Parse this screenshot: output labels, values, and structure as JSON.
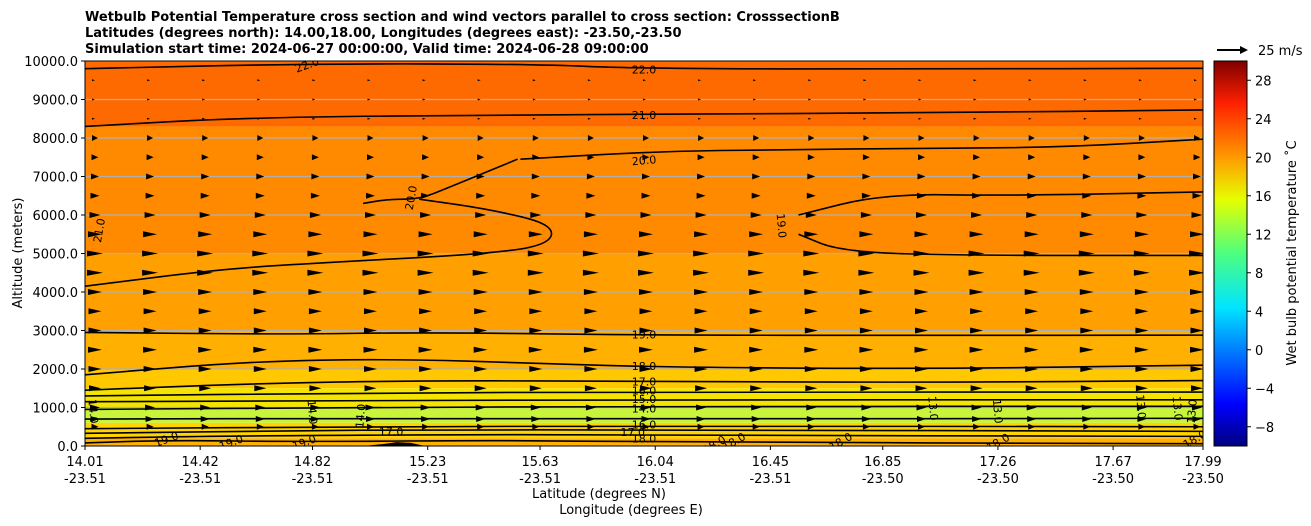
{
  "chart_data": {
    "type": "contour",
    "title_lines": [
      "Wetbulb Potential Temperature cross section and wind vectors parallel to cross section: CrosssectionB",
      "Latitudes (degrees north): 14.00,18.00, Longitudes (degrees east): -23.50,-23.50",
      "Simulation start time: 2024-06-27 00:00:00, Valid time: 2024-06-28 09:00:00"
    ],
    "ylabel": "Altitude (meters)",
    "xlabel_lines": [
      "Latitude (degrees N)",
      "Longitude (degrees E)"
    ],
    "ylim": [
      0,
      10000
    ],
    "yticks": [
      0,
      1000,
      2000,
      3000,
      4000,
      5000,
      6000,
      7000,
      8000,
      9000,
      10000
    ],
    "ytick_labels": [
      "0.0",
      "1000.0",
      "2000.0",
      "3000.0",
      "4000.0",
      "5000.0",
      "6000.0",
      "7000.0",
      "8000.0",
      "9000.0",
      "10000.0"
    ],
    "grid": "horizontal",
    "xticks": [
      {
        "lat": "14.01",
        "lon": "-23.51"
      },
      {
        "lat": "14.42",
        "lon": "-23.51"
      },
      {
        "lat": "14.82",
        "lon": "-23.51"
      },
      {
        "lat": "15.23",
        "lon": "-23.51"
      },
      {
        "lat": "15.63",
        "lon": "-23.51"
      },
      {
        "lat": "16.04",
        "lon": "-23.51"
      },
      {
        "lat": "16.45",
        "lon": "-23.51"
      },
      {
        "lat": "16.85",
        "lon": "-23.50"
      },
      {
        "lat": "17.26",
        "lon": "-23.50"
      },
      {
        "lat": "17.67",
        "lon": "-23.50"
      },
      {
        "lat": "17.99",
        "lon": "-23.50"
      }
    ],
    "colorbar": {
      "label": "Wet bulb potential temperature ˚C",
      "range": [
        -10,
        30
      ],
      "ticks": [
        -8,
        -4,
        0,
        4,
        8,
        12,
        16,
        20,
        24,
        28
      ],
      "tick_labels": [
        "−8",
        "−4",
        "0",
        "4",
        "8",
        "12",
        "16",
        "20",
        "24",
        "28"
      ],
      "colormap": "jet"
    },
    "quiver_key": "25 m/s",
    "contour_levels_labeled": [
      13.0,
      14.0,
      15.0,
      16.0,
      17.0,
      18.0,
      19.0,
      20.0,
      21.0,
      22.0
    ],
    "contours": [
      {
        "level": 22.0,
        "label": "22.0",
        "points": [
          [
            14.01,
            9800
          ],
          [
            14.8,
            9930
          ],
          [
            15.6,
            9920
          ],
          [
            16.0,
            9800
          ],
          [
            17.0,
            9790
          ],
          [
            17.99,
            9810
          ]
        ]
      },
      {
        "level": 21.0,
        "label": "21.0",
        "points": [
          [
            14.01,
            8300
          ],
          [
            14.6,
            8540
          ],
          [
            15.6,
            8600
          ],
          [
            16.04,
            8620
          ],
          [
            17.0,
            8650
          ],
          [
            17.99,
            8730
          ]
        ]
      },
      {
        "level": 20.0,
        "label": "20.0",
        "points": [
          [
            15.56,
            7450
          ],
          [
            16.04,
            7650
          ],
          [
            16.5,
            7700
          ],
          [
            17.0,
            7730
          ],
          [
            17.5,
            7760
          ],
          [
            17.99,
            7970
          ]
        ]
      },
      {
        "level": 20.0,
        "label": "20.0",
        "points": [
          [
            15.0,
            6300
          ],
          [
            15.09,
            6410
          ],
          [
            15.2,
            6410
          ],
          [
            15.3,
            6700
          ],
          [
            15.55,
            7450
          ]
        ]
      },
      {
        "level": 20.0,
        "label": "",
        "points": [
          [
            15.2,
            6410
          ],
          [
            15.45,
            6150
          ],
          [
            15.68,
            5750
          ],
          [
            15.66,
            5200
          ],
          [
            15.4,
            4970
          ],
          [
            14.9,
            4780
          ],
          [
            14.5,
            4600
          ],
          [
            14.01,
            4150
          ]
        ]
      },
      {
        "level": 19.0,
        "label": "19.0",
        "points": [
          [
            16.55,
            6000
          ],
          [
            16.85,
            6550
          ],
          [
            17.3,
            6500
          ],
          [
            17.99,
            6600
          ]
        ]
      },
      {
        "level": 19.0,
        "label": "",
        "points": [
          [
            16.55,
            5500
          ],
          [
            16.7,
            5050
          ],
          [
            17.1,
            4950
          ],
          [
            17.99,
            4950
          ]
        ]
      },
      {
        "level": 19.0,
        "label": "19.0",
        "points": [
          [
            14.01,
            2950
          ],
          [
            14.7,
            2900
          ],
          [
            15.23,
            2950
          ],
          [
            16.04,
            2880
          ],
          [
            17.0,
            2870
          ],
          [
            17.99,
            2880
          ]
        ]
      },
      {
        "level": 18.0,
        "label": "18.0",
        "points": [
          [
            14.01,
            1850
          ],
          [
            14.6,
            2200
          ],
          [
            15.1,
            2260
          ],
          [
            15.63,
            2150
          ],
          [
            16.04,
            2050
          ],
          [
            17.0,
            2000
          ],
          [
            17.99,
            2100
          ]
        ]
      },
      {
        "level": 17.0,
        "label": "17.0",
        "points": [
          [
            14.01,
            1450
          ],
          [
            14.6,
            1620
          ],
          [
            15.2,
            1700
          ],
          [
            16.04,
            1680
          ],
          [
            17.0,
            1650
          ],
          [
            17.99,
            1700
          ]
        ]
      },
      {
        "level": 16.0,
        "label": "16.0",
        "points": [
          [
            14.01,
            1300
          ],
          [
            15.0,
            1380
          ],
          [
            16.04,
            1400
          ],
          [
            17.99,
            1400
          ]
        ]
      },
      {
        "level": 15.0,
        "label": "15.0",
        "points": [
          [
            14.01,
            1150
          ],
          [
            15.0,
            1180
          ],
          [
            16.04,
            1200
          ],
          [
            17.99,
            1200
          ]
        ]
      },
      {
        "level": 14.0,
        "label": "14.0",
        "points": [
          [
            14.01,
            950
          ],
          [
            15.0,
            1000
          ],
          [
            16.04,
            1030
          ],
          [
            17.99,
            1030
          ]
        ]
      },
      {
        "level": 13.0,
        "label": "13.0",
        "points": [
          [
            14.01,
            700
          ],
          [
            15.0,
            720
          ],
          [
            16.04,
            700
          ],
          [
            17.99,
            720
          ]
        ]
      },
      {
        "level": 16.0,
        "label": "16.0",
        "points": [
          [
            14.01,
            450
          ],
          [
            15.0,
            500
          ],
          [
            16.04,
            520
          ],
          [
            17.99,
            500
          ]
        ]
      },
      {
        "level": 17.0,
        "label": "17.0",
        "points": [
          [
            14.01,
            330
          ],
          [
            14.8,
            400
          ],
          [
            15.2,
            420
          ],
          [
            16.04,
            420
          ],
          [
            17.99,
            380
          ]
        ]
      },
      {
        "level": 18.0,
        "label": "18.0",
        "points": [
          [
            14.01,
            200
          ],
          [
            14.5,
            260
          ],
          [
            15.5,
            300
          ],
          [
            16.04,
            280
          ],
          [
            17.99,
            250
          ]
        ]
      },
      {
        "level": 19.0,
        "label": "19.0",
        "points": [
          [
            14.01,
            80
          ],
          [
            14.3,
            150
          ],
          [
            14.8,
            110
          ],
          [
            15.5,
            150
          ],
          [
            16.04,
            100
          ],
          [
            17.99,
            60
          ]
        ]
      }
    ],
    "contour_labels": [
      {
        "text": "22.0",
        "lat": 14.8,
        "alt": 9900,
        "rotate": -20
      },
      {
        "text": "22.0",
        "lat": 16.0,
        "alt": 9780,
        "rotate": 0
      },
      {
        "text": "21.0",
        "lat": 16.0,
        "alt": 8600,
        "rotate": 0
      },
      {
        "text": "21.0",
        "lat": 14.06,
        "alt": 5600,
        "rotate": -80
      },
      {
        "text": "20.0",
        "lat": 16.0,
        "alt": 7420,
        "rotate": -5
      },
      {
        "text": "20.0",
        "lat": 15.17,
        "alt": 6450,
        "rotate": -80
      },
      {
        "text": "19.0",
        "lat": 16.49,
        "alt": 5720,
        "rotate": 85
      },
      {
        "text": "19.0",
        "lat": 16.0,
        "alt": 2900,
        "rotate": 0
      },
      {
        "text": "18.0",
        "lat": 16.0,
        "alt": 2080,
        "rotate": 0
      },
      {
        "text": "17.0",
        "lat": 16.0,
        "alt": 1680,
        "rotate": 0
      },
      {
        "text": "16.0",
        "lat": 16.0,
        "alt": 1440,
        "rotate": 0
      },
      {
        "text": "15.0",
        "lat": 16.0,
        "alt": 1220,
        "rotate": 0
      },
      {
        "text": "14.0",
        "lat": 16.0,
        "alt": 980,
        "rotate": 0
      },
      {
        "text": "14.0",
        "lat": 14.04,
        "alt": 900,
        "rotate": 85
      },
      {
        "text": "14.0",
        "lat": 14.82,
        "alt": 880,
        "rotate": 85
      },
      {
        "text": "14.0",
        "lat": 14.99,
        "alt": 780,
        "rotate": -85
      },
      {
        "text": "13.0",
        "lat": 17.26,
        "alt": 900,
        "rotate": 85
      },
      {
        "text": "13.0",
        "lat": 17.03,
        "alt": 980,
        "rotate": 85
      },
      {
        "text": "13.0",
        "lat": 17.9,
        "alt": 980,
        "rotate": 85
      },
      {
        "text": "13.0",
        "lat": 17.95,
        "alt": 900,
        "rotate": -85
      },
      {
        "text": "13.0",
        "lat": 17.77,
        "alt": 1020,
        "rotate": 85
      },
      {
        "text": "16.0",
        "lat": 16.0,
        "alt": 560,
        "rotate": 0
      },
      {
        "text": "17.0",
        "lat": 15.1,
        "alt": 380,
        "rotate": 0
      },
      {
        "text": "17.0",
        "lat": 15.96,
        "alt": 360,
        "rotate": 0
      },
      {
        "text": "18.0",
        "lat": 16.0,
        "alt": 200,
        "rotate": 0
      },
      {
        "text": "19.0",
        "lat": 14.3,
        "alt": 180,
        "rotate": -20
      },
      {
        "text": "19.0",
        "lat": 14.53,
        "alt": 100,
        "rotate": -20
      },
      {
        "text": "19.0",
        "lat": 14.79,
        "alt": 100,
        "rotate": -20
      },
      {
        "text": "18.0",
        "lat": 16.32,
        "alt": 120,
        "rotate": -30
      },
      {
        "text": "18.0",
        "lat": 16.7,
        "alt": 120,
        "rotate": -30
      },
      {
        "text": "18.0",
        "lat": 17.26,
        "alt": 100,
        "rotate": -30
      },
      {
        "text": "18.0",
        "lat": 17.96,
        "alt": 180,
        "rotate": -30
      },
      {
        "text": "18.0",
        "lat": 16.25,
        "alt": 40,
        "rotate": -30
      }
    ],
    "fill_bands": [
      {
        "alt_from": 8300,
        "alt_to": 10000,
        "value": 22,
        "color": "#ff6a00"
      },
      {
        "alt_from": 5000,
        "alt_to": 8300,
        "value": 21,
        "color": "#ff8a00"
      },
      {
        "alt_from": 3000,
        "alt_to": 5000,
        "value": 20,
        "color": "#ffa000"
      },
      {
        "alt_from": 2000,
        "alt_to": 3000,
        "value": 19,
        "color": "#ffb000"
      },
      {
        "alt_from": 1500,
        "alt_to": 2000,
        "value": 18,
        "color": "#ffc800"
      },
      {
        "alt_from": 1000,
        "alt_to": 1500,
        "value": 16,
        "color": "#f5e400"
      },
      {
        "alt_from": 600,
        "alt_to": 1000,
        "value": 14,
        "color": "#c8f53c"
      },
      {
        "alt_from": 200,
        "alt_to": 600,
        "value": 17,
        "color": "#ffd400"
      },
      {
        "alt_from": 0,
        "alt_to": 200,
        "value": 19,
        "color": "#ffb000"
      }
    ],
    "terrain": [
      [
        15.0,
        0
      ],
      [
        15.07,
        50
      ],
      [
        15.12,
        100
      ],
      [
        15.17,
        80
      ],
      [
        15.22,
        0
      ]
    ],
    "wind_vectors": {
      "direction": "parallel to cross section (northward)",
      "rows_alt": [
        500,
        700,
        1000,
        1500,
        2000,
        2500,
        3000,
        3500,
        4000,
        4500,
        5000,
        5500,
        6000,
        6500,
        7000,
        7500,
        8000,
        8500,
        9000,
        9500
      ],
      "strength_by_alt": [
        3,
        5,
        6,
        8,
        9,
        10,
        9,
        9,
        10,
        12,
        12,
        10,
        7,
        5,
        4,
        3,
        2,
        1,
        1,
        1
      ]
    }
  }
}
